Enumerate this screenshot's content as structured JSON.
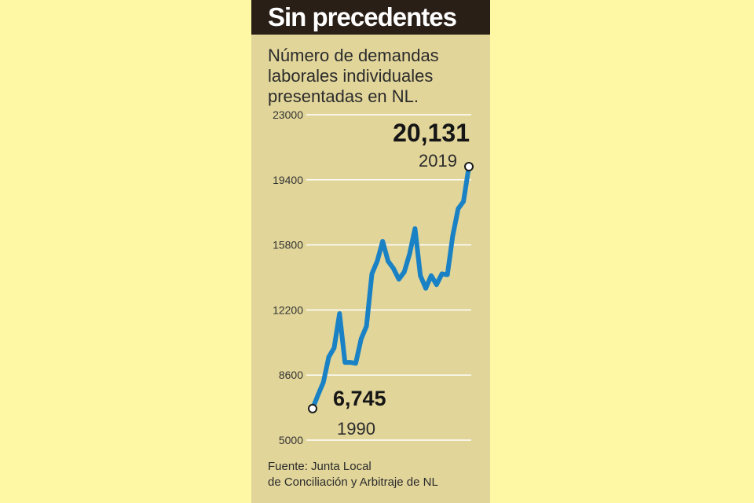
{
  "header": {
    "title": "Sin precedentes",
    "subtitle": "Número de demandas laborales individuales presentadas en NL."
  },
  "source": {
    "line1": "Fuente: Junta Local",
    "line2": "de Conciliación y Arbitraje de NL"
  },
  "colors": {
    "line": "#1a82c4",
    "panel": "#e1d59a",
    "background": "#fef7a4",
    "title_bar": "#2a1f17"
  },
  "chart_data": {
    "type": "line",
    "title": "Sin precedentes",
    "subtitle": "Número de demandas laborales individuales presentadas en NL.",
    "xlabel": "",
    "ylabel": "",
    "ylim": [
      5000,
      23000
    ],
    "yticks": [
      5000,
      8600,
      12200,
      15800,
      19400,
      23000
    ],
    "grid": true,
    "x": [
      1990,
      1991,
      1992,
      1993,
      1994,
      1995,
      1996,
      1997,
      1998,
      1999,
      2000,
      2001,
      2002,
      2003,
      2004,
      2005,
      2006,
      2007,
      2008,
      2009,
      2010,
      2011,
      2012,
      2013,
      2014,
      2015,
      2016,
      2017,
      2018,
      2019
    ],
    "series": [
      {
        "values": [
          6745,
          7500,
          8200,
          9600,
          10100,
          12000,
          9300,
          9300,
          9250,
          10600,
          11300,
          14200,
          14900,
          16000,
          14900,
          14500,
          13900,
          14300,
          15300,
          16700,
          14100,
          13400,
          14100,
          13600,
          14200,
          14150,
          16300,
          17800,
          18200,
          20131
        ]
      }
    ],
    "annotations": [
      {
        "value": "6,745",
        "year": "1990"
      },
      {
        "value": "20,131",
        "year": "2019"
      }
    ]
  }
}
